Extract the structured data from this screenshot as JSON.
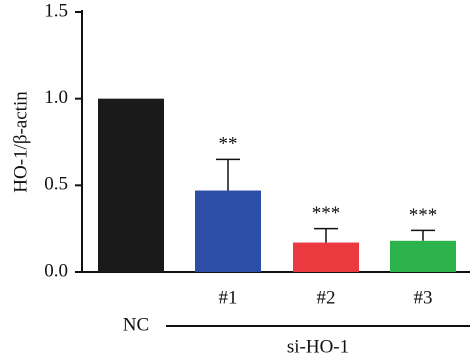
{
  "chart_data": {
    "type": "bar",
    "ylabel": "HO-1/β-actin",
    "categories": [
      "NC",
      "#1",
      "#2",
      "#3"
    ],
    "values": [
      1.0,
      0.47,
      0.17,
      0.18
    ],
    "errors": [
      0,
      0.18,
      0.08,
      0.06
    ],
    "colors": [
      "#1a1a1a",
      "#2c4ea6",
      "#eb3a3f",
      "#2db34b"
    ],
    "significance": [
      null,
      "**",
      "***",
      "***"
    ],
    "group_label": "si-HO-1",
    "ylim": [
      0,
      1.5
    ],
    "yticks": [
      {
        "value": 0,
        "label": "0.0"
      },
      0.5,
      {
        "value": 1,
        "label": "1.0"
      },
      1.5
    ]
  }
}
